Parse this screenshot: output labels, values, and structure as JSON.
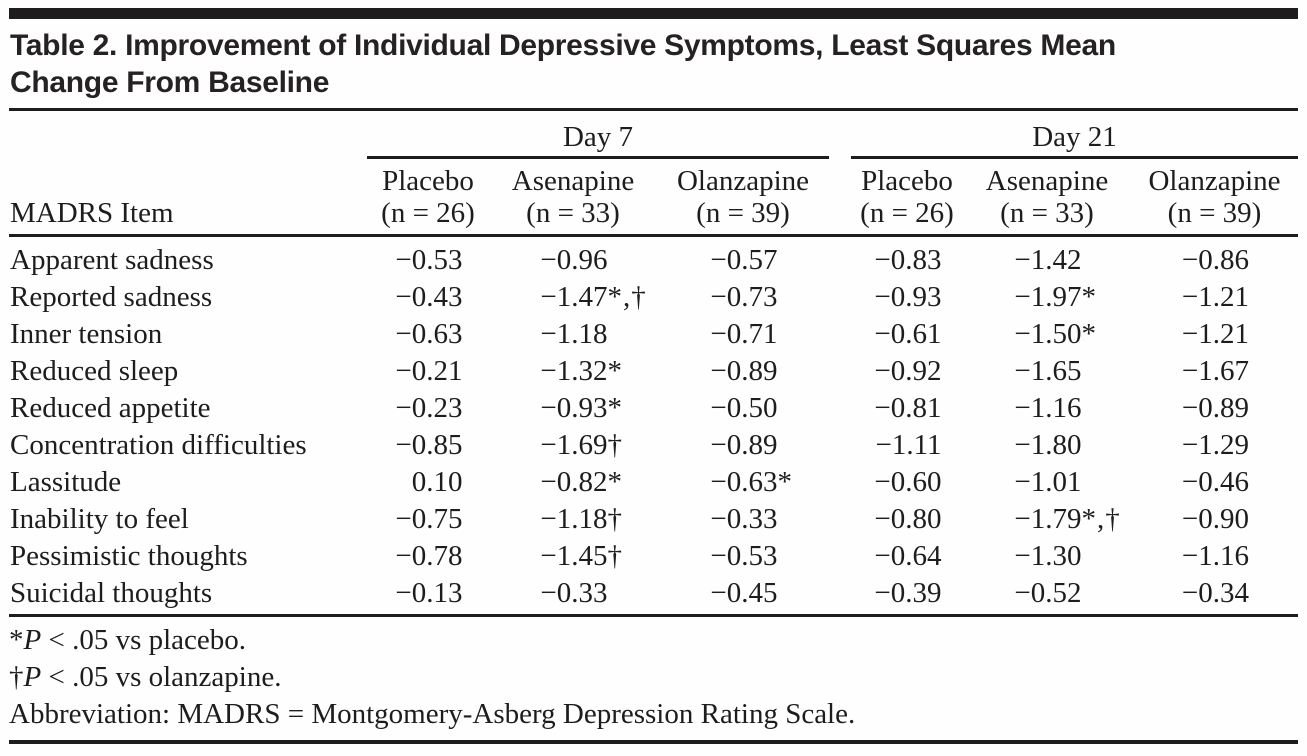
{
  "title": {
    "line1": "Table 2. Improvement of Individual Depressive Symptoms, Least Squares Mean",
    "line2": "Change From Baseline"
  },
  "table": {
    "item_header": "MADRS Item",
    "groups": [
      {
        "label": "Day 7",
        "columns": [
          {
            "drug": "Placebo",
            "n": "(n = 26)"
          },
          {
            "drug": "Asenapine",
            "n": "(n = 33)"
          },
          {
            "drug": "Olanzapine",
            "n": "(n = 39)"
          }
        ]
      },
      {
        "label": "Day 21",
        "columns": [
          {
            "drug": "Placebo",
            "n": "(n = 26)"
          },
          {
            "drug": "Asenapine",
            "n": "(n = 33)"
          },
          {
            "drug": "Olanzapine",
            "n": "(n = 39)"
          }
        ]
      }
    ],
    "rows": [
      {
        "item": "Apparent sadness",
        "values": [
          {
            "num": "−0.53",
            "mark": ""
          },
          {
            "num": "−0.96",
            "mark": ""
          },
          {
            "num": "−0.57",
            "mark": ""
          },
          {
            "num": "−0.83",
            "mark": ""
          },
          {
            "num": "−1.42",
            "mark": ""
          },
          {
            "num": "−0.86",
            "mark": ""
          }
        ]
      },
      {
        "item": "Reported sadness",
        "values": [
          {
            "num": "−0.43",
            "mark": ""
          },
          {
            "num": "−1.47",
            "mark": "*,†"
          },
          {
            "num": "−0.73",
            "mark": ""
          },
          {
            "num": "−0.93",
            "mark": ""
          },
          {
            "num": "−1.97",
            "mark": "*"
          },
          {
            "num": "−1.21",
            "mark": ""
          }
        ]
      },
      {
        "item": "Inner tension",
        "values": [
          {
            "num": "−0.63",
            "mark": ""
          },
          {
            "num": "−1.18",
            "mark": ""
          },
          {
            "num": "−0.71",
            "mark": ""
          },
          {
            "num": "−0.61",
            "mark": ""
          },
          {
            "num": "−1.50",
            "mark": "*"
          },
          {
            "num": "−1.21",
            "mark": ""
          }
        ]
      },
      {
        "item": "Reduced sleep",
        "values": [
          {
            "num": "−0.21",
            "mark": ""
          },
          {
            "num": "−1.32",
            "mark": "*"
          },
          {
            "num": "−0.89",
            "mark": ""
          },
          {
            "num": "−0.92",
            "mark": ""
          },
          {
            "num": "−1.65",
            "mark": ""
          },
          {
            "num": "−1.67",
            "mark": ""
          }
        ]
      },
      {
        "item": "Reduced appetite",
        "values": [
          {
            "num": "−0.23",
            "mark": ""
          },
          {
            "num": "−0.93",
            "mark": "*"
          },
          {
            "num": "−0.50",
            "mark": ""
          },
          {
            "num": "−0.81",
            "mark": ""
          },
          {
            "num": "−1.16",
            "mark": ""
          },
          {
            "num": "−0.89",
            "mark": ""
          }
        ]
      },
      {
        "item": "Concentration difficulties",
        "values": [
          {
            "num": "−0.85",
            "mark": ""
          },
          {
            "num": "−1.69",
            "mark": "†"
          },
          {
            "num": "−0.89",
            "mark": ""
          },
          {
            "num": "−1.11",
            "mark": ""
          },
          {
            "num": "−1.80",
            "mark": ""
          },
          {
            "num": "−1.29",
            "mark": ""
          }
        ]
      },
      {
        "item": "Lassitude",
        "values": [
          {
            "num": "0.10",
            "mark": ""
          },
          {
            "num": "−0.82",
            "mark": "*"
          },
          {
            "num": "−0.63",
            "mark": "*"
          },
          {
            "num": "−0.60",
            "mark": ""
          },
          {
            "num": "−1.01",
            "mark": ""
          },
          {
            "num": "−0.46",
            "mark": ""
          }
        ]
      },
      {
        "item": "Inability to feel",
        "values": [
          {
            "num": "−0.75",
            "mark": ""
          },
          {
            "num": "−1.18",
            "mark": "†"
          },
          {
            "num": "−0.33",
            "mark": ""
          },
          {
            "num": "−0.80",
            "mark": ""
          },
          {
            "num": "−1.79",
            "mark": "*,†"
          },
          {
            "num": "−0.90",
            "mark": ""
          }
        ]
      },
      {
        "item": "Pessimistic thoughts",
        "values": [
          {
            "num": "−0.78",
            "mark": ""
          },
          {
            "num": "−1.45",
            "mark": "†"
          },
          {
            "num": "−0.53",
            "mark": ""
          },
          {
            "num": "−0.64",
            "mark": ""
          },
          {
            "num": "−1.30",
            "mark": ""
          },
          {
            "num": "−1.16",
            "mark": ""
          }
        ]
      },
      {
        "item": "Suicidal thoughts",
        "values": [
          {
            "num": "−0.13",
            "mark": ""
          },
          {
            "num": "−0.33",
            "mark": ""
          },
          {
            "num": "−0.45",
            "mark": ""
          },
          {
            "num": "−0.39",
            "mark": ""
          },
          {
            "num": "−0.52",
            "mark": ""
          },
          {
            "num": "−0.34",
            "mark": ""
          }
        ]
      }
    ]
  },
  "footnotes": {
    "significance": [
      {
        "marker": "*",
        "p": "P",
        "text": " < .05 vs placebo."
      },
      {
        "marker": "†",
        "p": "P",
        "text": " < .05 vs olanzapine."
      }
    ],
    "abbreviation": "Abbreviation: MADRS = Montgomery-Asberg Depression Rating Scale."
  },
  "colors": {
    "text": "#1d1d1d",
    "rule": "#1f1c1d",
    "background": "#fefefe"
  }
}
